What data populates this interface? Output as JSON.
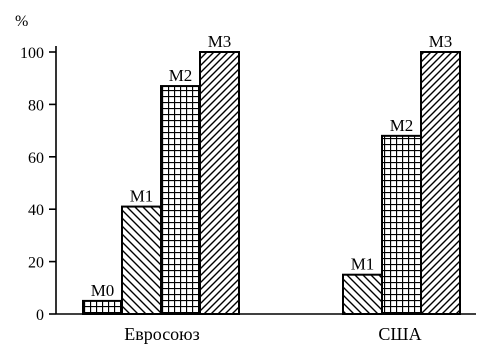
{
  "chart_data": {
    "type": "bar",
    "ylabel": "%",
    "ylim": [
      0,
      100
    ],
    "yticks": [
      0,
      20,
      40,
      60,
      80,
      100
    ],
    "grid": false,
    "groups": [
      {
        "category": "Евросоюз",
        "bars": [
          {
            "label": "M0",
            "value": 5,
            "pattern": "grid"
          },
          {
            "label": "M1",
            "value": 41,
            "pattern": "diagonal-backslash"
          },
          {
            "label": "M2",
            "value": 87,
            "pattern": "grid"
          },
          {
            "label": "M3",
            "value": 100,
            "pattern": "diagonal-forward"
          }
        ]
      },
      {
        "category": "США",
        "bars": [
          {
            "label": "M1",
            "value": 15,
            "pattern": "diagonal-backslash"
          },
          {
            "label": "M2",
            "value": 68,
            "pattern": "grid"
          },
          {
            "label": "M3",
            "value": 100,
            "pattern": "diagonal-forward"
          }
        ]
      }
    ]
  }
}
